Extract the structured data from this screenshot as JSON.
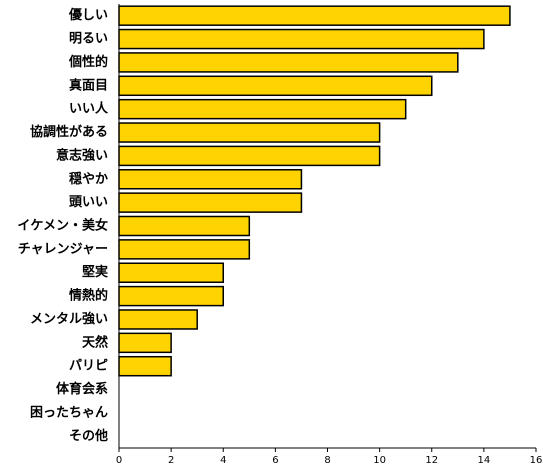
{
  "chart_data": {
    "type": "hbar",
    "categories": [
      "優しい",
      "明るい",
      "個性的",
      "真面目",
      "いい人",
      "協調性がある",
      "意志強い",
      "穏やか",
      "頭いい",
      "イケメン・美女",
      "チャレンジャー",
      "堅実",
      "情熱的",
      "メンタル強い",
      "天然",
      "パリピ",
      "体育会系",
      "困ったちゃん",
      "その他"
    ],
    "values": [
      15,
      14,
      13,
      12,
      11,
      10,
      10,
      7,
      7,
      5,
      5,
      4,
      4,
      3,
      2,
      2,
      0,
      0,
      0
    ],
    "color": "#ffd300",
    "xlim": [
      0,
      16
    ],
    "xticks": [
      0,
      2,
      4,
      6,
      8,
      10,
      12,
      14,
      16
    ]
  }
}
